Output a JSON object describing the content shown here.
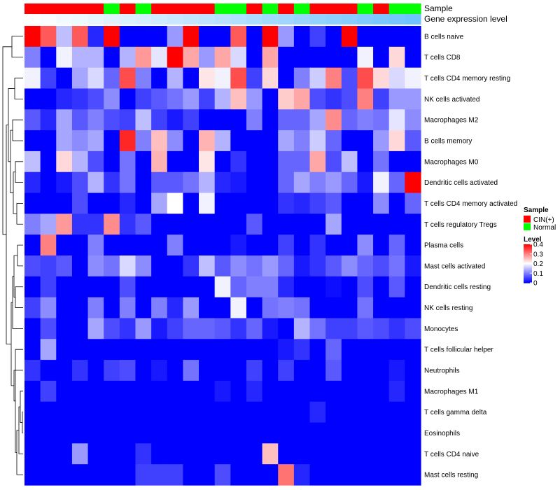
{
  "chart_data": {
    "type": "heatmap",
    "title": "",
    "annotation_labels": {
      "sample": "Sample",
      "gene": "Gene expression level"
    },
    "sample_groups": [
      "CIN",
      "CIN",
      "CIN",
      "CIN",
      "CIN",
      "Normal",
      "CIN",
      "Normal",
      "CIN",
      "CIN",
      "CIN",
      "CIN",
      "Normal",
      "Normal",
      "CIN",
      "Normal",
      "CIN",
      "Normal",
      "CIN",
      "CIN",
      "CIN",
      "Normal",
      "CIN",
      "Normal",
      "Normal"
    ],
    "gene_expression_level": [
      0.0,
      0.04,
      0.08,
      0.12,
      0.17,
      0.21,
      0.25,
      0.29,
      0.33,
      0.38,
      0.42,
      0.46,
      0.5,
      0.54,
      0.58,
      0.63,
      0.67,
      0.71,
      0.75,
      0.79,
      0.83,
      0.88,
      0.92,
      0.96,
      1.0
    ],
    "cell_types": [
      "B cells naive",
      "T cells CD8",
      "T cells CD4 memory resting",
      "NK cells activated",
      "Macrophages M2",
      "B cells memory",
      "Macrophages M0",
      "Dendritic cells activated",
      "T cells CD4 memory activated",
      "T cells regulatory  Tregs",
      "Plasma cells",
      "Mast cells activated",
      "Dendritic cells resting",
      "NK cells resting",
      "Monocytes",
      "T cells follicular helper",
      "Neutrophils",
      "Macrophages M1",
      "T cells gamma delta",
      "Eosinophils",
      "T cells CD4 naive",
      "Mast cells resting"
    ],
    "values": [
      [
        0.4,
        0.33,
        0.15,
        0.33,
        0.03,
        0.4,
        0.0,
        0.0,
        0.0,
        0.12,
        0.4,
        0.0,
        0.0,
        0.33,
        0.0,
        0.4,
        0.12,
        0.0,
        0.05,
        0.0,
        0.4,
        0.0,
        0.0,
        0.0,
        0.0
      ],
      [
        0.1,
        0.0,
        0.19,
        0.14,
        0.14,
        0.0,
        0.14,
        0.28,
        0.18,
        0.4,
        0.27,
        0.12,
        0.27,
        0.17,
        0.0,
        0.27,
        0.0,
        0.0,
        0.0,
        0.0,
        0.0,
        0.19,
        0.0,
        0.23,
        0.0
      ],
      [
        0.19,
        0.05,
        0.0,
        0.13,
        0.17,
        0.08,
        0.34,
        0.1,
        0.0,
        0.14,
        0.0,
        0.22,
        0.19,
        0.34,
        0.05,
        0.23,
        0.0,
        0.1,
        0.16,
        0.3,
        0.06,
        0.34,
        0.23,
        0.17,
        0.19
      ],
      [
        0.0,
        0.0,
        0.03,
        0.04,
        0.06,
        0.11,
        0.0,
        0.05,
        0.07,
        0.09,
        0.12,
        0.05,
        0.14,
        0.25,
        0.12,
        0.0,
        0.24,
        0.27,
        0.06,
        0.04,
        0.06,
        0.3,
        0.05,
        0.12,
        0.12
      ],
      [
        0.07,
        0.03,
        0.13,
        0.07,
        0.1,
        0.06,
        0.05,
        0.15,
        0.05,
        0.02,
        0.05,
        0.0,
        0.0,
        0.0,
        0.1,
        0.0,
        0.08,
        0.08,
        0.13,
        0.29,
        0.08,
        0.1,
        0.09,
        0.18,
        0.11
      ],
      [
        0.0,
        0.0,
        0.13,
        0.11,
        0.13,
        0.0,
        0.37,
        0.1,
        0.25,
        0.11,
        0.0,
        0.26,
        0.14,
        0.0,
        0.0,
        0.0,
        0.13,
        0.1,
        0.16,
        0.08,
        0.0,
        0.0,
        0.12,
        0.23,
        0.07
      ],
      [
        0.15,
        0.0,
        0.23,
        0.14,
        0.06,
        0.0,
        0.09,
        0.0,
        0.26,
        0.0,
        0.0,
        0.22,
        0.0,
        0.04,
        0.0,
        0.0,
        0.08,
        0.08,
        0.27,
        0.06,
        0.15,
        0.0,
        0.09,
        0.0,
        0.0
      ],
      [
        0.03,
        0.0,
        0.02,
        0.06,
        0.14,
        0.04,
        0.09,
        0.0,
        0.07,
        0.07,
        0.09,
        0.14,
        0.03,
        0.02,
        0.0,
        0.0,
        0.08,
        0.13,
        0.1,
        0.12,
        0.08,
        0.02,
        0.19,
        0.08,
        0.4
      ],
      [
        0.0,
        0.0,
        0.0,
        0.06,
        0.0,
        0.0,
        0.03,
        0.0,
        0.13,
        0.2,
        0.0,
        0.19,
        0.0,
        0.0,
        0.0,
        0.0,
        0.04,
        0.03,
        0.05,
        0.07,
        0.0,
        0.0,
        0.11,
        0.0,
        0.08
      ],
      [
        0.1,
        0.13,
        0.28,
        0.04,
        0.04,
        0.29,
        0.04,
        0.07,
        0.0,
        0.0,
        0.0,
        0.0,
        0.0,
        0.0,
        0.07,
        0.0,
        0.0,
        0.0,
        0.0,
        0.13,
        0.0,
        0.0,
        0.0,
        0.0,
        0.0
      ],
      [
        0.0,
        0.3,
        0.0,
        0.0,
        0.1,
        0.0,
        0.0,
        0.0,
        0.0,
        0.1,
        0.0,
        0.0,
        0.0,
        0.02,
        0.0,
        0.0,
        0.05,
        0.0,
        0.04,
        0.0,
        0.0,
        0.11,
        0.0,
        0.08,
        0.0
      ],
      [
        0.06,
        0.05,
        0.07,
        0.0,
        0.11,
        0.09,
        0.17,
        0.11,
        0.0,
        0.0,
        0.04,
        0.15,
        0.07,
        0.11,
        0.09,
        0.12,
        0.08,
        0.02,
        0.04,
        0.07,
        0.11,
        0.08,
        0.06,
        0.09,
        0.02
      ],
      [
        0.0,
        0.05,
        0.0,
        0.0,
        0.0,
        0.0,
        0.06,
        0.0,
        0.0,
        0.0,
        0.0,
        0.0,
        0.19,
        0.08,
        0.1,
        0.1,
        0.03,
        0.0,
        0.0,
        0.01,
        0.0,
        0.06,
        0.0,
        0.07,
        0.0
      ],
      [
        0.05,
        0.11,
        0.0,
        0.0,
        0.1,
        0.0,
        0.1,
        0.0,
        0.1,
        0.03,
        0.12,
        0.0,
        0.0,
        0.19,
        0.0,
        0.09,
        0.1,
        0.09,
        0.0,
        0.0,
        0.0,
        0.09,
        0.0,
        0.0,
        0.0
      ],
      [
        0.0,
        0.06,
        0.0,
        0.0,
        0.13,
        0.06,
        0.04,
        0.12,
        0.02,
        0.05,
        0.08,
        0.08,
        0.07,
        0.04,
        0.08,
        0.02,
        0.0,
        0.14,
        0.09,
        0.05,
        0.05,
        0.07,
        0.06,
        0.04,
        0.06
      ],
      [
        0.0,
        0.13,
        0.0,
        0.0,
        0.0,
        0.0,
        0.0,
        0.0,
        0.0,
        0.0,
        0.0,
        0.0,
        0.0,
        0.0,
        0.0,
        0.0,
        0.02,
        0.04,
        0.0,
        0.08,
        0.0,
        0.0,
        0.0,
        0.0,
        0.0
      ],
      [
        0.04,
        0.0,
        0.0,
        0.04,
        0.0,
        0.05,
        0.06,
        0.0,
        0.02,
        0.0,
        0.09,
        0.0,
        0.0,
        0.0,
        0.05,
        0.0,
        0.05,
        0.0,
        0.0,
        0.07,
        0.0,
        0.0,
        0.0,
        0.02,
        0.0
      ],
      [
        0.0,
        0.05,
        0.0,
        0.0,
        0.0,
        0.0,
        0.0,
        0.0,
        0.0,
        0.0,
        0.0,
        0.0,
        0.02,
        0.0,
        0.03,
        0.0,
        0.0,
        0.0,
        0.0,
        0.0,
        0.0,
        0.0,
        0.0,
        0.03,
        0.0
      ],
      [
        0.0,
        0.0,
        0.0,
        0.0,
        0.0,
        0.0,
        0.0,
        0.0,
        0.0,
        0.0,
        0.0,
        0.0,
        0.0,
        0.0,
        0.0,
        0.0,
        0.0,
        0.0,
        0.03,
        0.0,
        0.0,
        0.0,
        0.0,
        0.0,
        0.0
      ],
      [
        0.0,
        0.0,
        0.0,
        0.0,
        0.0,
        0.0,
        0.0,
        0.0,
        0.0,
        0.0,
        0.0,
        0.0,
        0.0,
        0.0,
        0.0,
        0.0,
        0.0,
        0.0,
        0.0,
        0.0,
        0.0,
        0.0,
        0.0,
        0.0,
        0.0
      ],
      [
        0.0,
        0.0,
        0.0,
        0.12,
        0.0,
        0.0,
        0.0,
        0.04,
        0.0,
        0.0,
        0.0,
        0.0,
        0.0,
        0.0,
        0.0,
        0.25,
        0.0,
        0.0,
        0.0,
        0.0,
        0.0,
        0.0,
        0.0,
        0.0,
        0.0
      ],
      [
        0.0,
        0.0,
        0.0,
        0.0,
        0.0,
        0.0,
        0.0,
        0.05,
        0.05,
        0.05,
        0.0,
        0.0,
        0.06,
        0.0,
        0.0,
        0.0,
        0.31,
        0.03,
        0.0,
        0.0,
        0.0,
        0.0,
        0.0,
        0.0,
        0.0
      ]
    ],
    "color_scale": {
      "min": 0,
      "mid": 0.2,
      "max": 0.4,
      "low_color": "#0000ff",
      "mid_color": "#ffffff",
      "high_color": "#ff0000"
    },
    "legend": {
      "sample_title": "Sample",
      "sample_entries": [
        {
          "key": "CIN",
          "label": "CIN(+)",
          "color": "#ff0000"
        },
        {
          "key": "Normal",
          "label": "Normal",
          "color": "#00ff00"
        }
      ],
      "level_title": "Level",
      "level_ticks": [
        {
          "value": 0.4,
          "label": "0.4"
        },
        {
          "value": 0.3,
          "label": "0.3"
        },
        {
          "value": 0.2,
          "label": "0.2"
        },
        {
          "value": 0.1,
          "label": "0.1"
        },
        {
          "value": 0,
          "label": "0"
        }
      ],
      "placement": "right"
    },
    "gene_colors": {
      "low": "#ffffff",
      "high": "#6fc3ff"
    },
    "row_dendrogram": true
  }
}
